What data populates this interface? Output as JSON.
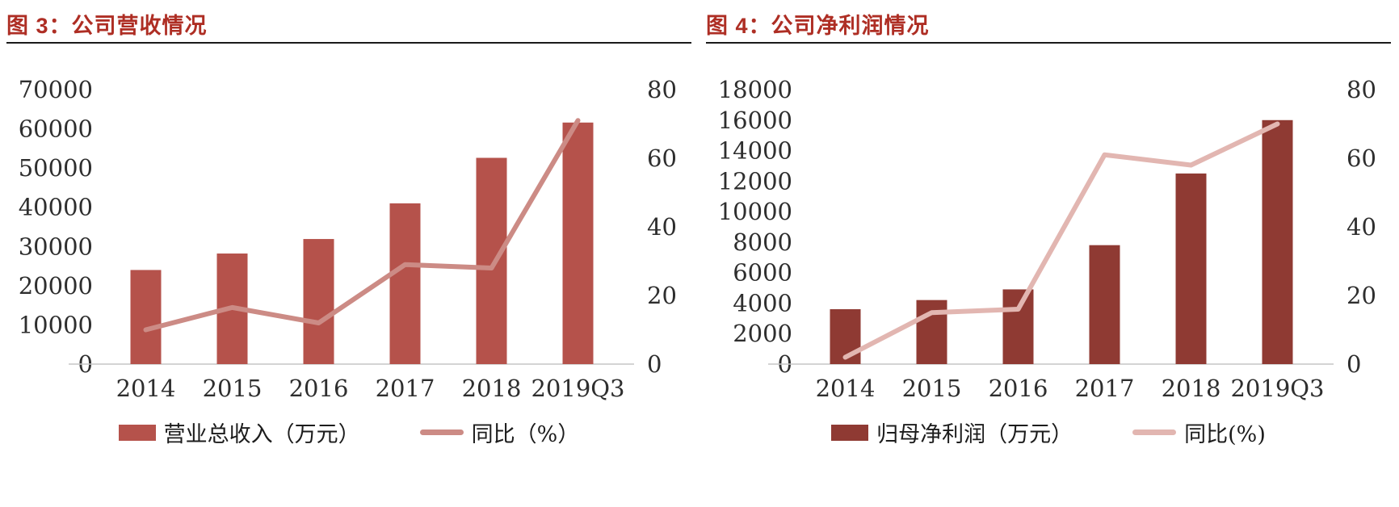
{
  "colors": {
    "title_red": "#AE2E24",
    "title_underline": "#1A1A1A",
    "axis_line": "#C6C6C6",
    "tick_text": "#2E2E2E"
  },
  "chart_data": [
    {
      "type": "bar+line",
      "title": "图 3：公司营收情况",
      "categories": [
        "2014",
        "2015",
        "2016",
        "2017",
        "2018",
        "2019Q3"
      ],
      "series": [
        {
          "name": "营业总收入（万元）",
          "kind": "bar",
          "axis": "left",
          "color": "#B5524B",
          "values": [
            24000,
            28200,
            31900,
            41000,
            52600,
            61600
          ]
        },
        {
          "name": "同比（%）",
          "kind": "line",
          "axis": "right",
          "color": "#CC8B85",
          "values": [
            10,
            16.5,
            12,
            29,
            28,
            71
          ]
        }
      ],
      "left_axis": {
        "min": 0,
        "max": 70000,
        "step": 10000,
        "ticks": [
          "70000",
          "60000",
          "50000",
          "40000",
          "30000",
          "20000",
          "10000",
          "0"
        ]
      },
      "right_axis": {
        "min": 0,
        "max": 80,
        "step": 20,
        "ticks": [
          "80",
          "60",
          "40",
          "20",
          "0"
        ]
      },
      "grid": "off",
      "legend_position": "bottom"
    },
    {
      "type": "bar+line",
      "title": "图 4：公司净利润情况",
      "categories": [
        "2014",
        "2015",
        "2016",
        "2017",
        "2018",
        "2019Q3"
      ],
      "series": [
        {
          "name": "归母净利润（万元）",
          "kind": "bar",
          "axis": "left",
          "color": "#8F3A33",
          "values": [
            3600,
            4200,
            4900,
            7800,
            12500,
            16000
          ]
        },
        {
          "name": "同比(%)",
          "kind": "line",
          "axis": "right",
          "color": "#E2B6B1",
          "values": [
            2,
            15,
            16,
            61,
            58,
            70
          ]
        }
      ],
      "left_axis": {
        "min": 0,
        "max": 18000,
        "step": 2000,
        "ticks": [
          "18000",
          "16000",
          "14000",
          "12000",
          "10000",
          "8000",
          "6000",
          "4000",
          "2000",
          "0"
        ]
      },
      "right_axis": {
        "min": 0,
        "max": 80,
        "step": 20,
        "ticks": [
          "80",
          "60",
          "40",
          "20",
          "0"
        ]
      },
      "grid": "off",
      "legend_position": "bottom"
    }
  ]
}
